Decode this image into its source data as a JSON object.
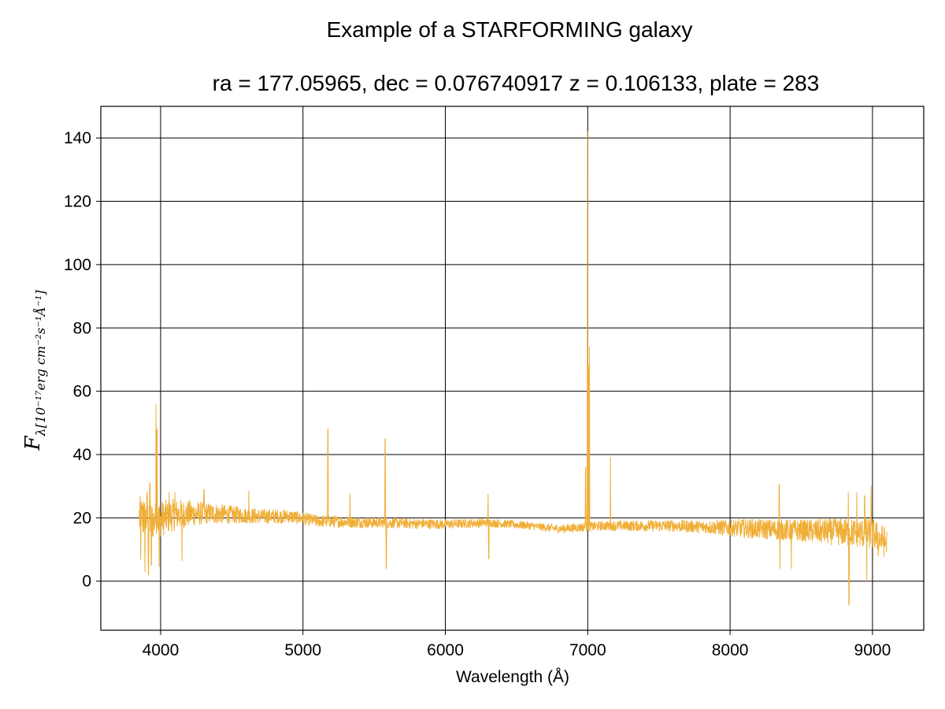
{
  "chart_data": {
    "type": "line",
    "title": "Example of a STARFORMING galaxy",
    "subtitle": "ra = 177.05965, dec = 0.076740917 z = 0.106133, plate = 283",
    "xlabel": "Wavelength (Å)",
    "ylabel_main": "F",
    "ylabel_subscript": "λ[10⁻¹⁷erg cm⁻²s⁻¹Å⁻¹]",
    "xlim": [
      3580,
      9360
    ],
    "ylim": [
      -15.5,
      150
    ],
    "x_ticks": [
      4000,
      5000,
      6000,
      7000,
      8000,
      9000
    ],
    "y_ticks": [
      0,
      20,
      40,
      60,
      80,
      100,
      120,
      140
    ],
    "grid": true,
    "line_color": "#f0ae36",
    "continuum": [
      [
        3850,
        20
      ],
      [
        3950,
        19
      ],
      [
        4100,
        21
      ],
      [
        4300,
        21.5
      ],
      [
        4500,
        21
      ],
      [
        4700,
        20.5
      ],
      [
        4900,
        20.5
      ],
      [
        5100,
        19
      ],
      [
        5500,
        18.5
      ],
      [
        6000,
        18
      ],
      [
        6300,
        18.5
      ],
      [
        6600,
        17.5
      ],
      [
        6800,
        16.5
      ],
      [
        6950,
        17
      ],
      [
        7100,
        17.5
      ],
      [
        7300,
        17.5
      ],
      [
        7600,
        17.5
      ],
      [
        7900,
        17
      ],
      [
        8200,
        16.5
      ],
      [
        8500,
        16
      ],
      [
        8800,
        15.5
      ],
      [
        9000,
        15
      ],
      [
        9100,
        12
      ]
    ],
    "noise_envelope": [
      [
        3850,
        7
      ],
      [
        3950,
        6
      ],
      [
        4100,
        5
      ],
      [
        4300,
        3.5
      ],
      [
        4600,
        2.5
      ],
      [
        5000,
        2
      ],
      [
        6000,
        1.5
      ],
      [
        6600,
        1.2
      ],
      [
        7100,
        1.5
      ],
      [
        7800,
        2
      ],
      [
        8100,
        3
      ],
      [
        8500,
        3.5
      ],
      [
        8800,
        4.5
      ],
      [
        9100,
        5
      ]
    ],
    "features": [
      {
        "x": 3860,
        "y": 7
      },
      {
        "x": 3880,
        "y": 25
      },
      {
        "x": 3890,
        "y": 3
      },
      {
        "x": 3905,
        "y": 28
      },
      {
        "x": 3915,
        "y": 2
      },
      {
        "x": 3925,
        "y": 31
      },
      {
        "x": 3935,
        "y": 5
      },
      {
        "x": 3968,
        "y": 56
      },
      {
        "x": 3975,
        "y": 48
      },
      {
        "x": 3990,
        "y": 4.5
      },
      {
        "x": 4060,
        "y": 28
      },
      {
        "x": 4100,
        "y": 28
      },
      {
        "x": 4150,
        "y": 6.5
      },
      {
        "x": 4305,
        "y": 29
      },
      {
        "x": 4620,
        "y": 28.5
      },
      {
        "x": 5175,
        "y": 48
      },
      {
        "x": 5330,
        "y": 27.5
      },
      {
        "x": 5577,
        "y": 45
      },
      {
        "x": 5585,
        "y": 4
      },
      {
        "x": 6300,
        "y": 27.5
      },
      {
        "x": 6305,
        "y": 7
      },
      {
        "x": 6985,
        "y": 36
      },
      {
        "x": 6998,
        "y": 142
      },
      {
        "x": 7005,
        "y": 68
      },
      {
        "x": 7012,
        "y": 74
      },
      {
        "x": 7160,
        "y": 39
      },
      {
        "x": 8345,
        "y": 30.5
      },
      {
        "x": 8350,
        "y": 4
      },
      {
        "x": 8430,
        "y": 4
      },
      {
        "x": 8830,
        "y": 28
      },
      {
        "x": 8835,
        "y": -7.5
      },
      {
        "x": 8890,
        "y": 28
      },
      {
        "x": 8945,
        "y": 27
      },
      {
        "x": 8960,
        "y": 0
      },
      {
        "x": 8990,
        "y": 30
      },
      {
        "x": 9040,
        "y": 8
      }
    ]
  }
}
